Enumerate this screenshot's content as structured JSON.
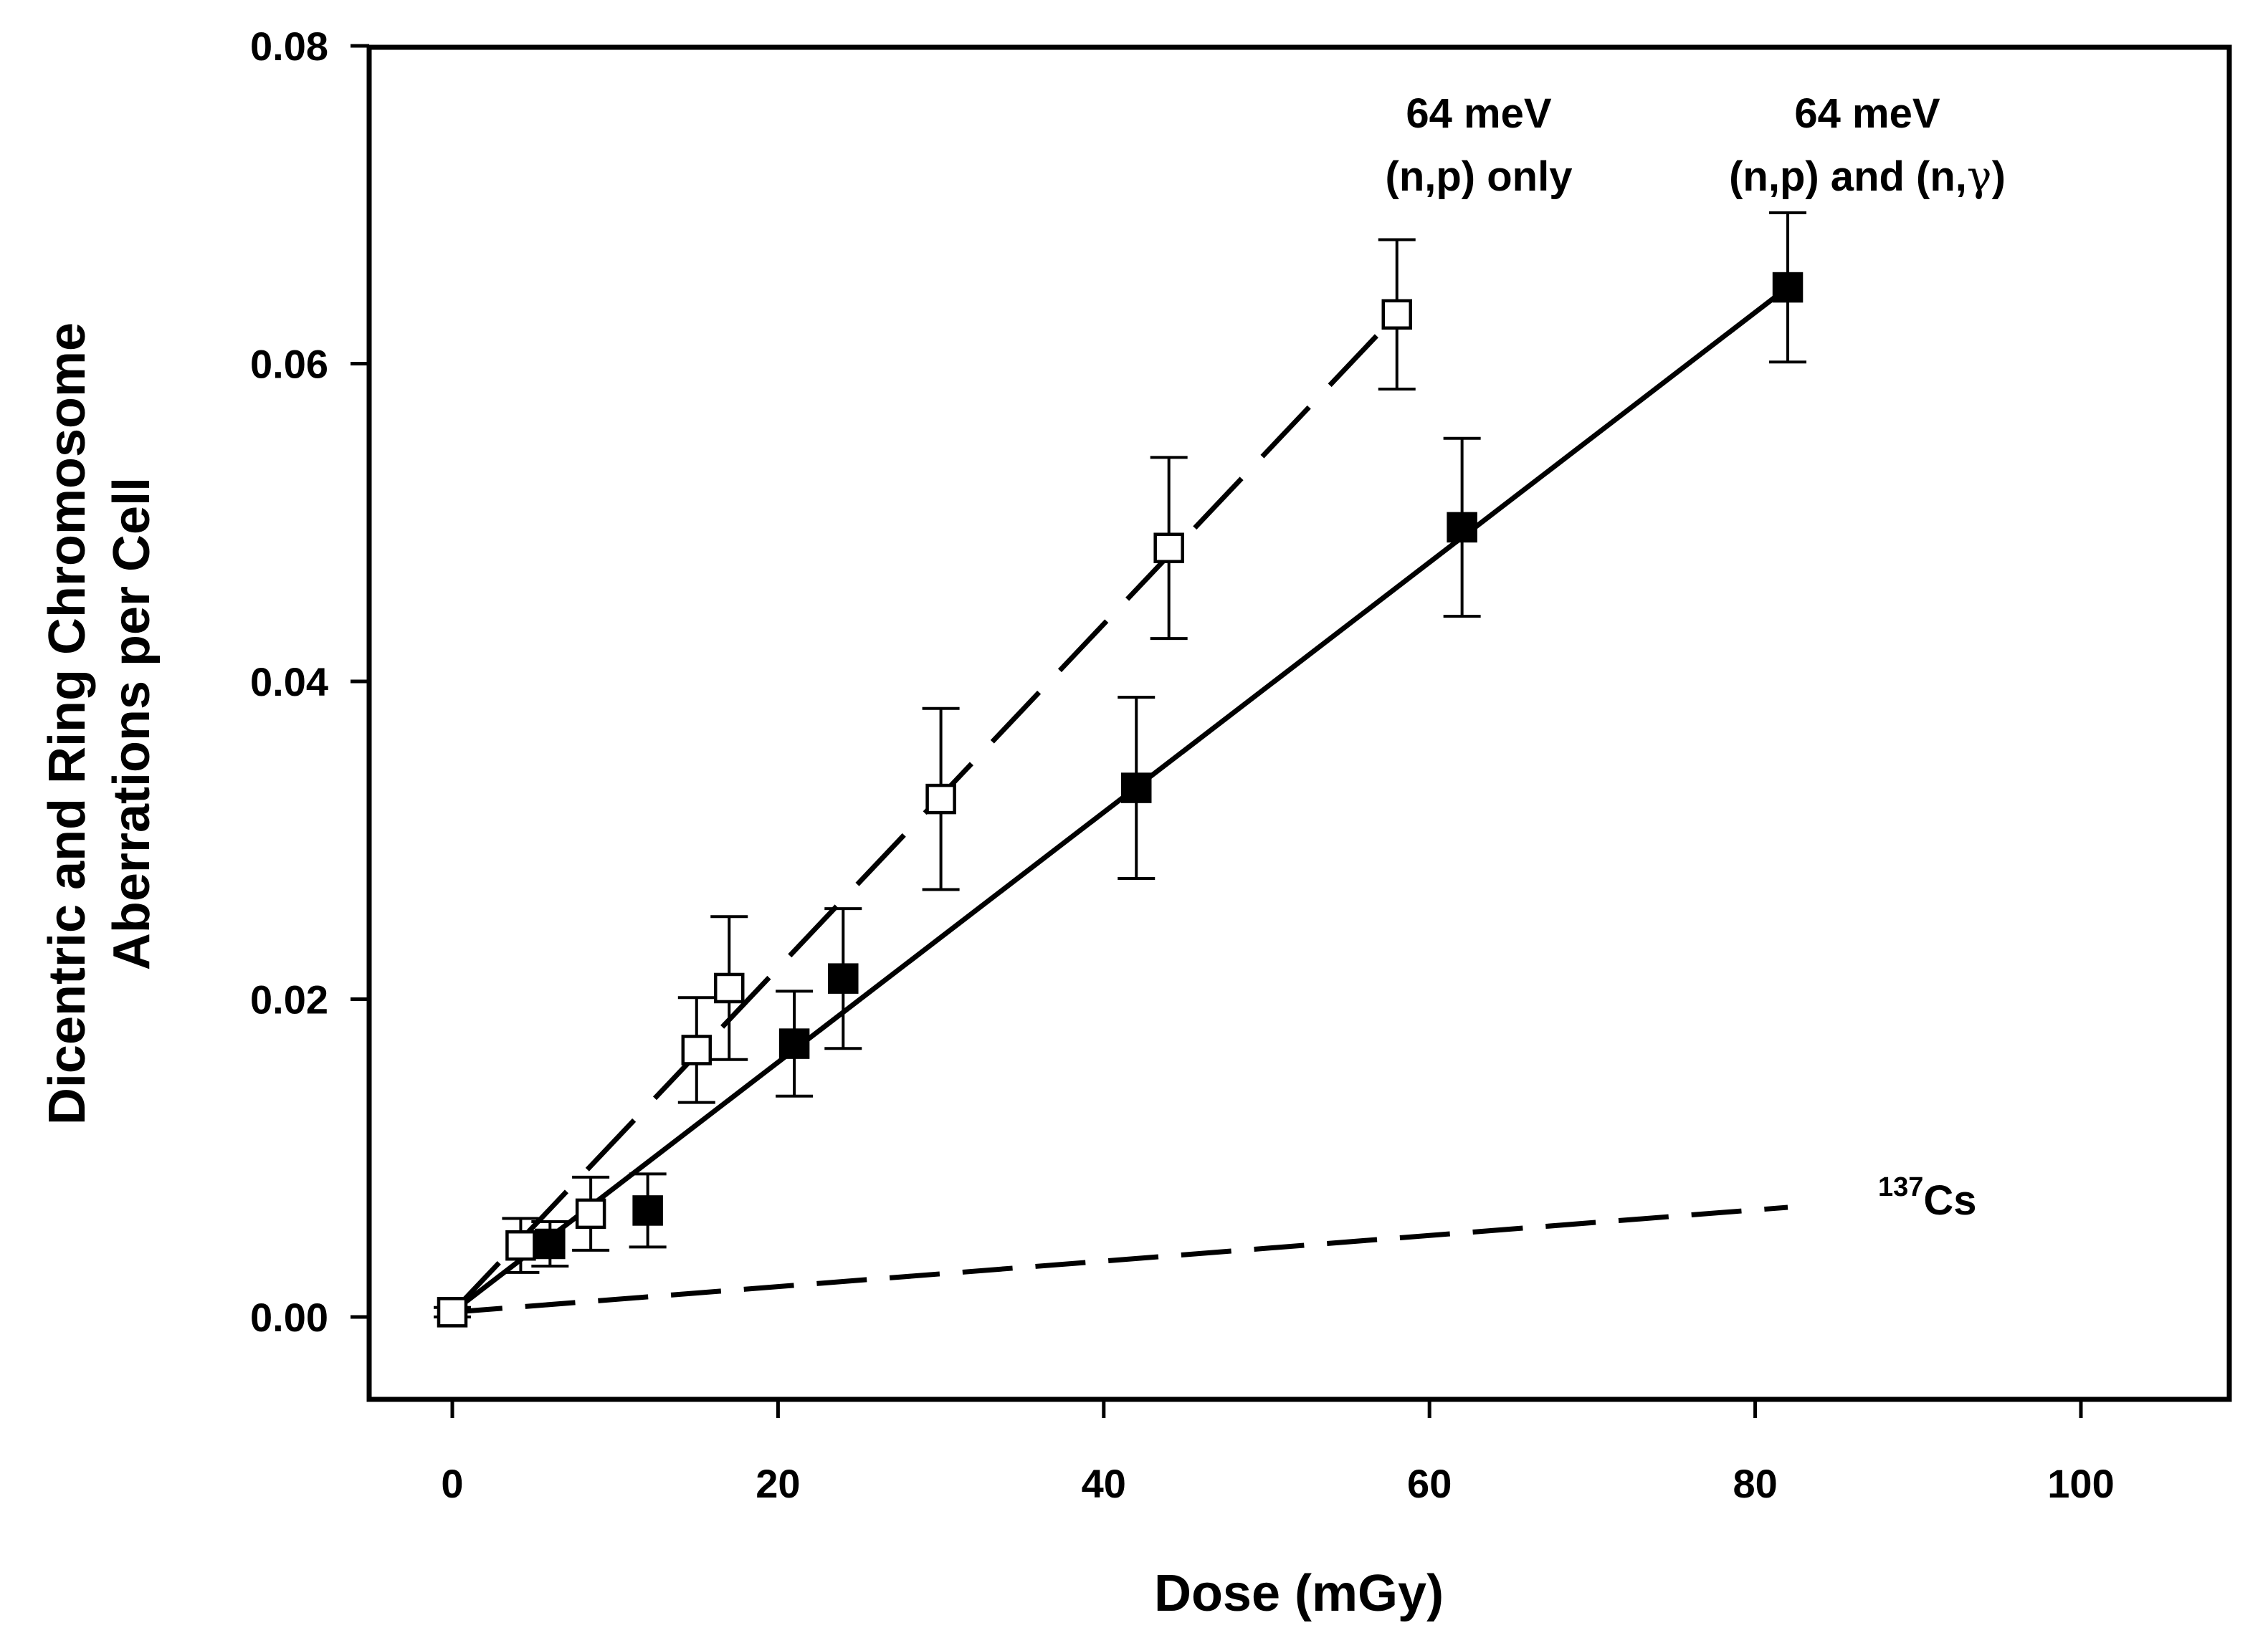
{
  "chart_data": {
    "type": "scatter",
    "title": "",
    "xlabel": "Dose (mGy)",
    "ylabel_line1": "Dicentric and Ring Chromosome",
    "ylabel_line2": "Aberrations per Cell",
    "xlim": [
      -5,
      110
    ],
    "ylim": [
      -0.005,
      0.08
    ],
    "x_ticks": [
      0,
      20,
      40,
      60,
      80,
      100
    ],
    "x_tick_labels": [
      "0",
      "20",
      "40",
      "60",
      "80",
      "100"
    ],
    "y_ticks": [
      0.0,
      0.02,
      0.04,
      0.06,
      0.08
    ],
    "y_tick_labels": [
      "0.00",
      "0.02",
      "0.04",
      "0.06",
      "0.08"
    ],
    "grid": false,
    "series": [
      {
        "name": "64 meV (n,p) only",
        "marker": "open-square",
        "points": [
          {
            "x": 0,
            "y": 0.0003,
            "err": 0.0003
          },
          {
            "x": 4.2,
            "y": 0.0045,
            "err": 0.0017
          },
          {
            "x": 8.5,
            "y": 0.0065,
            "err": 0.0023
          },
          {
            "x": 15,
            "y": 0.0168,
            "err": 0.0033
          },
          {
            "x": 17,
            "y": 0.0207,
            "err": 0.0045
          },
          {
            "x": 30,
            "y": 0.0326,
            "err": 0.0057
          },
          {
            "x": 44,
            "y": 0.0484,
            "err": 0.0057
          },
          {
            "x": 58,
            "y": 0.0631,
            "err": 0.0047
          }
        ],
        "fit": {
          "style": "long-dash",
          "x0": 0,
          "y0": 0.0003,
          "x1": 58,
          "y1": 0.0631
        }
      },
      {
        "name": "64 meV (n,p) and (n,γ)",
        "marker": "filled-square",
        "points": [
          {
            "x": 6,
            "y": 0.0046,
            "err": 0.0014
          },
          {
            "x": 12,
            "y": 0.0067,
            "err": 0.0023
          },
          {
            "x": 21,
            "y": 0.0172,
            "err": 0.0033
          },
          {
            "x": 24,
            "y": 0.0213,
            "err": 0.0044
          },
          {
            "x": 42,
            "y": 0.0333,
            "err": 0.0057
          },
          {
            "x": 62,
            "y": 0.0497,
            "err": 0.0056
          },
          {
            "x": 82,
            "y": 0.0648,
            "err": 0.0047
          }
        ],
        "fit": {
          "style": "solid",
          "x0": 0,
          "y0": 0.0003,
          "x1": 82,
          "y1": 0.0648
        }
      },
      {
        "name": "137Cs",
        "marker": "none",
        "points": [],
        "fit": {
          "style": "dash",
          "x0": 0,
          "y0": 0.0003,
          "x1": 82,
          "y1": 0.0069
        }
      }
    ],
    "annotations": {
      "np_only_line1": "64 meV",
      "np_only_line2": "(n,p) only",
      "np_ng_line1": "64 meV",
      "np_ng_line2_prefix": "(n,p) and (n,",
      "np_ng_line2_gamma": "γ",
      "np_ng_line2_suffix": ")",
      "cs_superscript": "137",
      "cs_label": "Cs"
    }
  }
}
